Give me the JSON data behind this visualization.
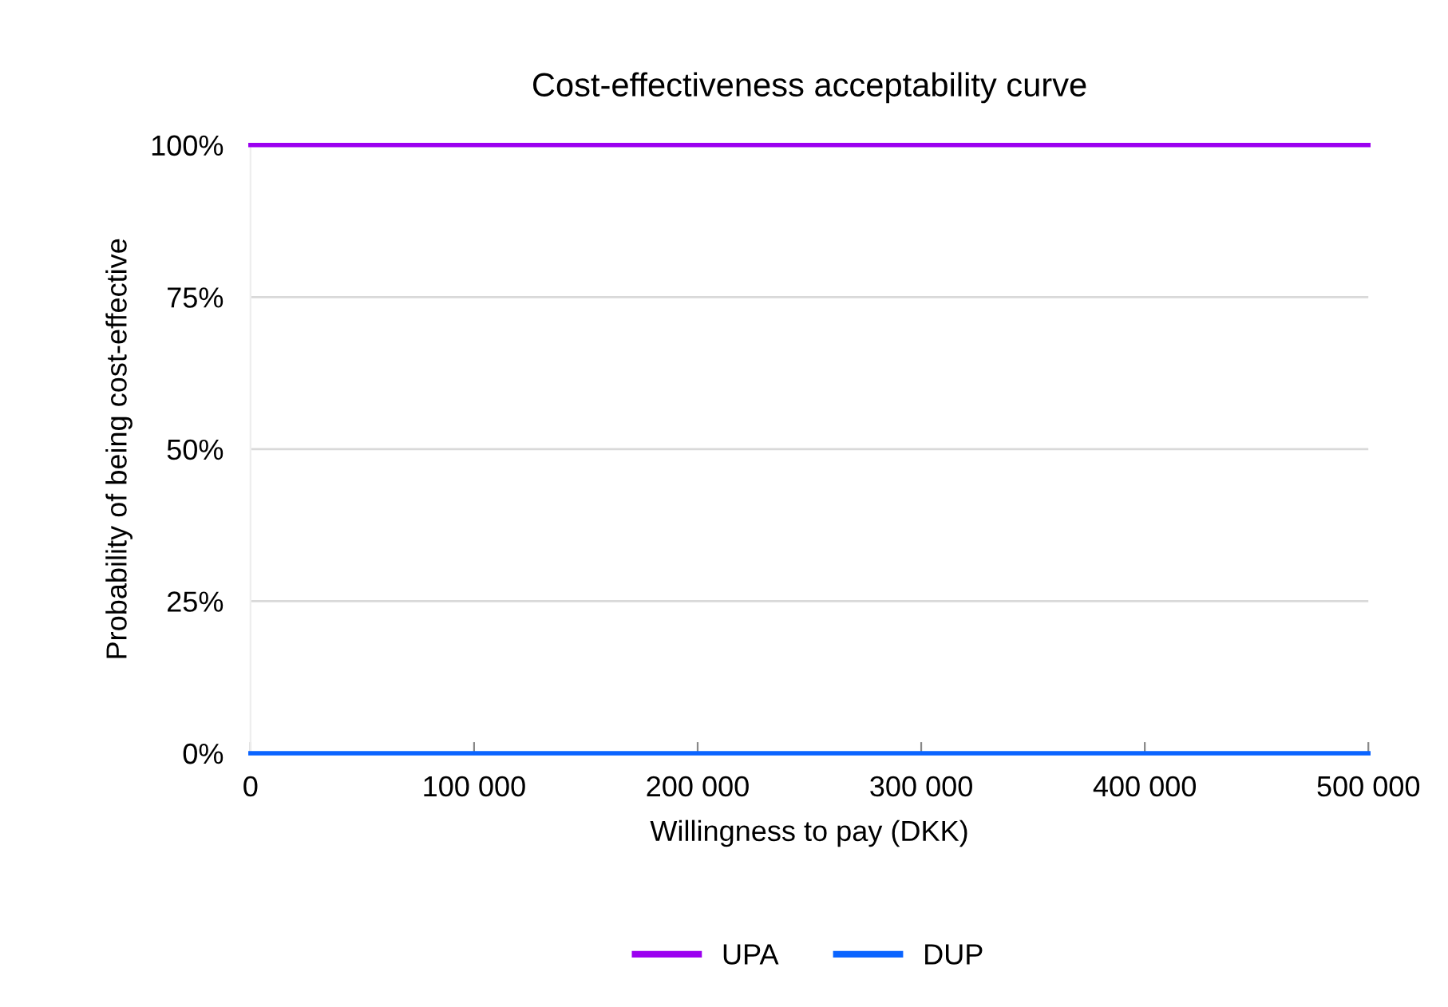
{
  "chart_data": {
    "type": "line",
    "title": "Cost-effectiveness acceptability curve",
    "xlabel": "Willingness to pay (DKK)",
    "ylabel": "Probability of being cost-effective",
    "x": [
      0,
      500000
    ],
    "series": [
      {
        "name": "UPA",
        "color": "#9b00f0",
        "values": [
          100,
          100
        ]
      },
      {
        "name": "DUP",
        "color": "#0a64ff",
        "values": [
          0,
          0
        ]
      }
    ],
    "xlim": [
      0,
      500000
    ],
    "xticks": [
      0,
      {
        "value": 100000,
        "label": "100 000"
      },
      {
        "value": 200000,
        "label": "200 000"
      },
      {
        "value": 300000,
        "label": "300 000"
      },
      {
        "value": 400000,
        "label": "400 000"
      },
      {
        "value": 500000,
        "label": "500 000"
      }
    ],
    "ylim": [
      0,
      100
    ],
    "yticks": [
      {
        "value": 0,
        "label": "0%"
      },
      {
        "value": 25,
        "label": "25%"
      },
      {
        "value": 50,
        "label": "50%"
      },
      {
        "value": 75,
        "label": "75%"
      },
      {
        "value": 100,
        "label": "100%"
      }
    ],
    "grid": "y",
    "legend": "bottom",
    "marker": "none",
    "line_style": "solid"
  }
}
